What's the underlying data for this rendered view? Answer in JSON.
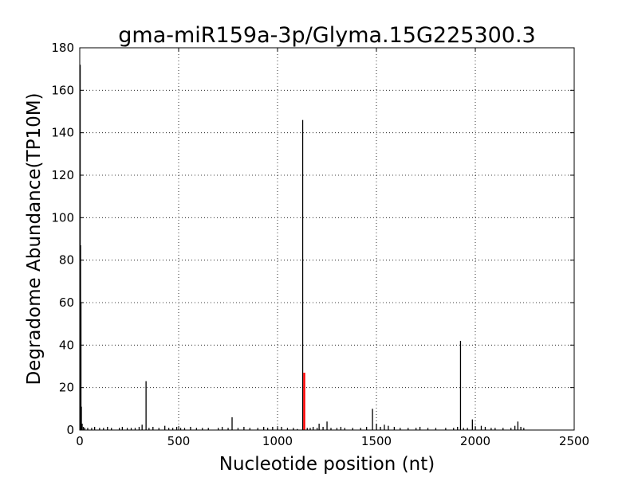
{
  "chart_data": {
    "type": "bar",
    "title": "gma-miR159a-3p/Glyma.15G225300.3",
    "xlabel": "Nucleotide position (nt)",
    "ylabel": "Degradome Abundance(TP10M)",
    "xlim": [
      0,
      2500
    ],
    "ylim": [
      0,
      180
    ],
    "xticks": [
      0,
      500,
      1000,
      1500,
      2000,
      2500
    ],
    "yticks": [
      0,
      20,
      40,
      60,
      80,
      100,
      120,
      140,
      160,
      180
    ],
    "grid": true,
    "bar_color": "#000000",
    "highlight_color": "#ff0000",
    "series": [
      {
        "values": [
          [
            2,
            172
          ],
          [
            4,
            87
          ],
          [
            6,
            60
          ],
          [
            8,
            11
          ],
          [
            12,
            3
          ],
          [
            18,
            1.5
          ],
          [
            25,
            1
          ],
          [
            40,
            1
          ],
          [
            60,
            1
          ],
          [
            75,
            1.5
          ],
          [
            100,
            1
          ],
          [
            120,
            1
          ],
          [
            140,
            1.5
          ],
          [
            160,
            1
          ],
          [
            200,
            1
          ],
          [
            215,
            1.5
          ],
          [
            240,
            1
          ],
          [
            260,
            1
          ],
          [
            280,
            1
          ],
          [
            300,
            1.5
          ],
          [
            315,
            2.5
          ],
          [
            335,
            23
          ],
          [
            350,
            1
          ],
          [
            370,
            1.5
          ],
          [
            400,
            1
          ],
          [
            430,
            2
          ],
          [
            450,
            1
          ],
          [
            470,
            1
          ],
          [
            490,
            1.5
          ],
          [
            510,
            1
          ],
          [
            530,
            1
          ],
          [
            560,
            1.5
          ],
          [
            590,
            1
          ],
          [
            620,
            1
          ],
          [
            650,
            1
          ],
          [
            700,
            1
          ],
          [
            720,
            1.5
          ],
          [
            750,
            1
          ],
          [
            770,
            6
          ],
          [
            800,
            1
          ],
          [
            830,
            1.5
          ],
          [
            860,
            1
          ],
          [
            900,
            1
          ],
          [
            930,
            1.5
          ],
          [
            950,
            1
          ],
          [
            975,
            1.5
          ],
          [
            1000,
            1
          ],
          [
            1020,
            1.5
          ],
          [
            1050,
            1
          ],
          [
            1080,
            1
          ],
          [
            1100,
            0.5
          ],
          [
            1127,
            146
          ],
          [
            1150,
            1
          ],
          [
            1165,
            1
          ],
          [
            1180,
            1.5
          ],
          [
            1200,
            1
          ],
          [
            1210,
            3
          ],
          [
            1230,
            1.5
          ],
          [
            1250,
            4
          ],
          [
            1270,
            1
          ],
          [
            1300,
            1
          ],
          [
            1320,
            1.5
          ],
          [
            1340,
            1
          ],
          [
            1380,
            1
          ],
          [
            1420,
            1
          ],
          [
            1450,
            1.5
          ],
          [
            1480,
            10
          ],
          [
            1500,
            3
          ],
          [
            1520,
            1.5
          ],
          [
            1540,
            2.5
          ],
          [
            1560,
            2
          ],
          [
            1590,
            1.5
          ],
          [
            1620,
            1
          ],
          [
            1660,
            1
          ],
          [
            1700,
            1
          ],
          [
            1720,
            1.5
          ],
          [
            1760,
            1
          ],
          [
            1800,
            1
          ],
          [
            1850,
            1
          ],
          [
            1890,
            1
          ],
          [
            1910,
            1.5
          ],
          [
            1925,
            42
          ],
          [
            1940,
            1
          ],
          [
            1960,
            1
          ],
          [
            1985,
            5
          ],
          [
            2000,
            1.5
          ],
          [
            2030,
            2
          ],
          [
            2050,
            1.5
          ],
          [
            2080,
            1
          ],
          [
            2100,
            1
          ],
          [
            2140,
            1
          ],
          [
            2180,
            1
          ],
          [
            2200,
            2
          ],
          [
            2215,
            4
          ],
          [
            2230,
            1.5
          ],
          [
            2245,
            1
          ]
        ]
      }
    ],
    "highlight": {
      "x": [
        1130,
        1140
      ],
      "value": 27
    }
  }
}
